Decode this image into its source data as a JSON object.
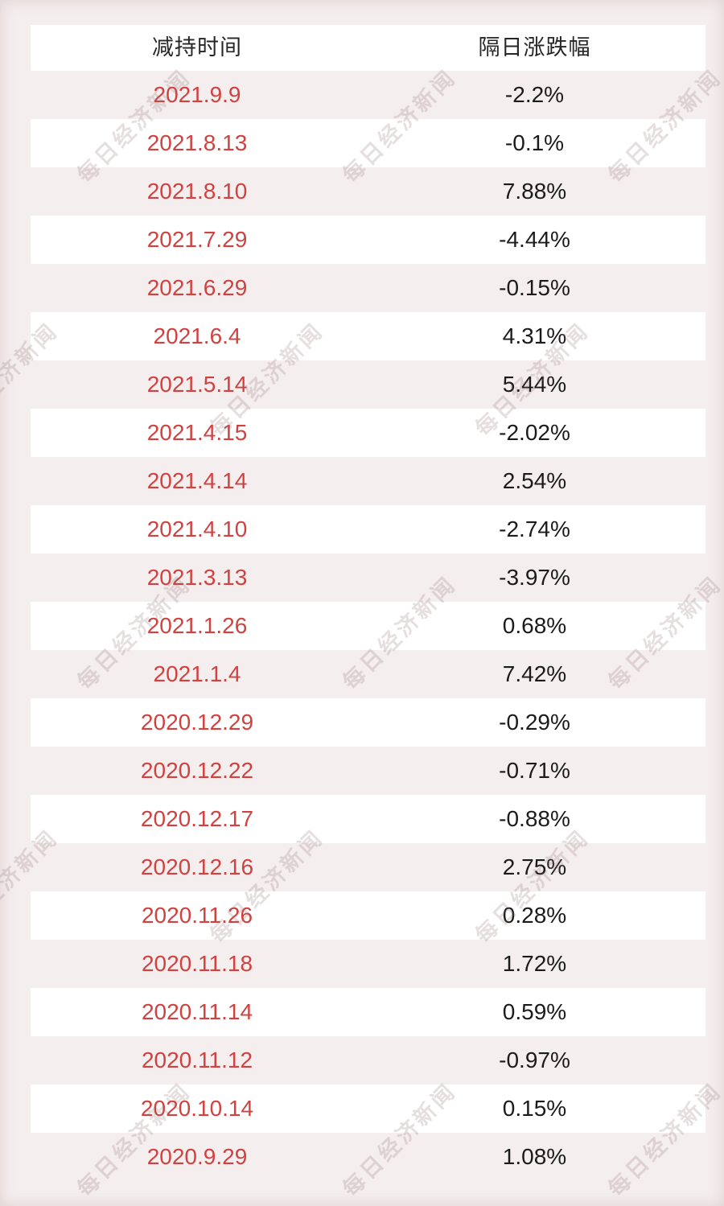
{
  "page": {
    "background_color": "#f5eeee"
  },
  "watermark": {
    "text": "每日经济新闻",
    "color": "rgba(135,110,110,0.22)"
  },
  "chart_data": {
    "type": "table",
    "columns": [
      "减持时间",
      "隔日涨跌幅"
    ],
    "rows": [
      {
        "date": "2021.9.9",
        "change": "-2.2%"
      },
      {
        "date": "2021.8.13",
        "change": "-0.1%"
      },
      {
        "date": "2021.8.10",
        "change": "7.88%"
      },
      {
        "date": "2021.7.29",
        "change": "-4.44%"
      },
      {
        "date": "2021.6.29",
        "change": "-0.15%"
      },
      {
        "date": "2021.6.4",
        "change": "4.31%"
      },
      {
        "date": "2021.5.14",
        "change": "5.44%"
      },
      {
        "date": "2021.4.15",
        "change": "-2.02%"
      },
      {
        "date": "2021.4.14",
        "change": "2.54%"
      },
      {
        "date": "2021.4.10",
        "change": "-2.74%"
      },
      {
        "date": "2021.3.13",
        "change": "-3.97%"
      },
      {
        "date": "2021.1.26",
        "change": "0.68%"
      },
      {
        "date": "2021.1.4",
        "change": "7.42%"
      },
      {
        "date": "2020.12.29",
        "change": "-0.29%"
      },
      {
        "date": "2020.12.22",
        "change": "-0.71%"
      },
      {
        "date": "2020.12.17",
        "change": "-0.88%"
      },
      {
        "date": "2020.12.16",
        "change": "2.75%"
      },
      {
        "date": "2020.11.26",
        "change": "0.28%"
      },
      {
        "date": "2020.11.18",
        "change": "1.72%"
      },
      {
        "date": "2020.11.14",
        "change": "0.59%"
      },
      {
        "date": "2020.11.12",
        "change": "-0.97%"
      },
      {
        "date": "2020.10.14",
        "change": "0.15%"
      },
      {
        "date": "2020.9.29",
        "change": "1.08%"
      }
    ],
    "styles": {
      "date_color": "#d04240",
      "value_color": "#1b1b1b",
      "row_white": "#ffffff",
      "row_pink": "#f5eeee"
    }
  }
}
